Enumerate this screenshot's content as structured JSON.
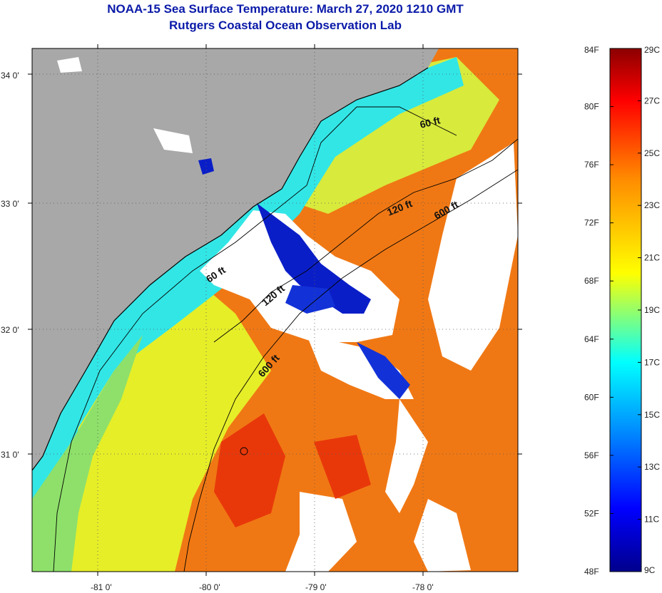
{
  "header": {
    "title_line1": "NOAA-15 Sea Surface Temperature:  March 27, 2020 1210 GMT",
    "title_line2": "Rutgers Coastal Ocean Observation Lab"
  },
  "map": {
    "lon_ticks": [
      "-81 0'",
      "-80 0'",
      "-79 0'",
      "-78 0'"
    ],
    "lat_ticks": [
      "34 0'",
      "33 0'",
      "32 0'",
      "31 0'"
    ],
    "isobaths": {
      "ft60_a": "60 ft",
      "ft60_b": "60 ft",
      "ft120_a": "120 ft",
      "ft120_b": "120 ft",
      "ft600_a": "600 ft",
      "ft600_b": "600 ft"
    },
    "colors": {
      "land": "#a8a8a8",
      "cloud": "#ffffff",
      "cold_plume": "#0a1ec8",
      "shelf": "#32e6e6",
      "midshelf": "#e6ee28",
      "gulfstream": "#f07814"
    }
  },
  "colorbar": {
    "fahrenheit": [
      "84F",
      "80F",
      "76F",
      "72F",
      "68F",
      "64F",
      "60F",
      "56F",
      "52F",
      "48F"
    ],
    "celsius": [
      "29C",
      "27C",
      "25C",
      "23C",
      "21C",
      "19C",
      "17C",
      "15C",
      "13C",
      "11C",
      "9C"
    ],
    "stops": [
      "#00008c",
      "#0000ff",
      "#0096ff",
      "#00ffff",
      "#ffff00",
      "#ff8c00",
      "#ff0000",
      "#8c0000"
    ]
  }
}
